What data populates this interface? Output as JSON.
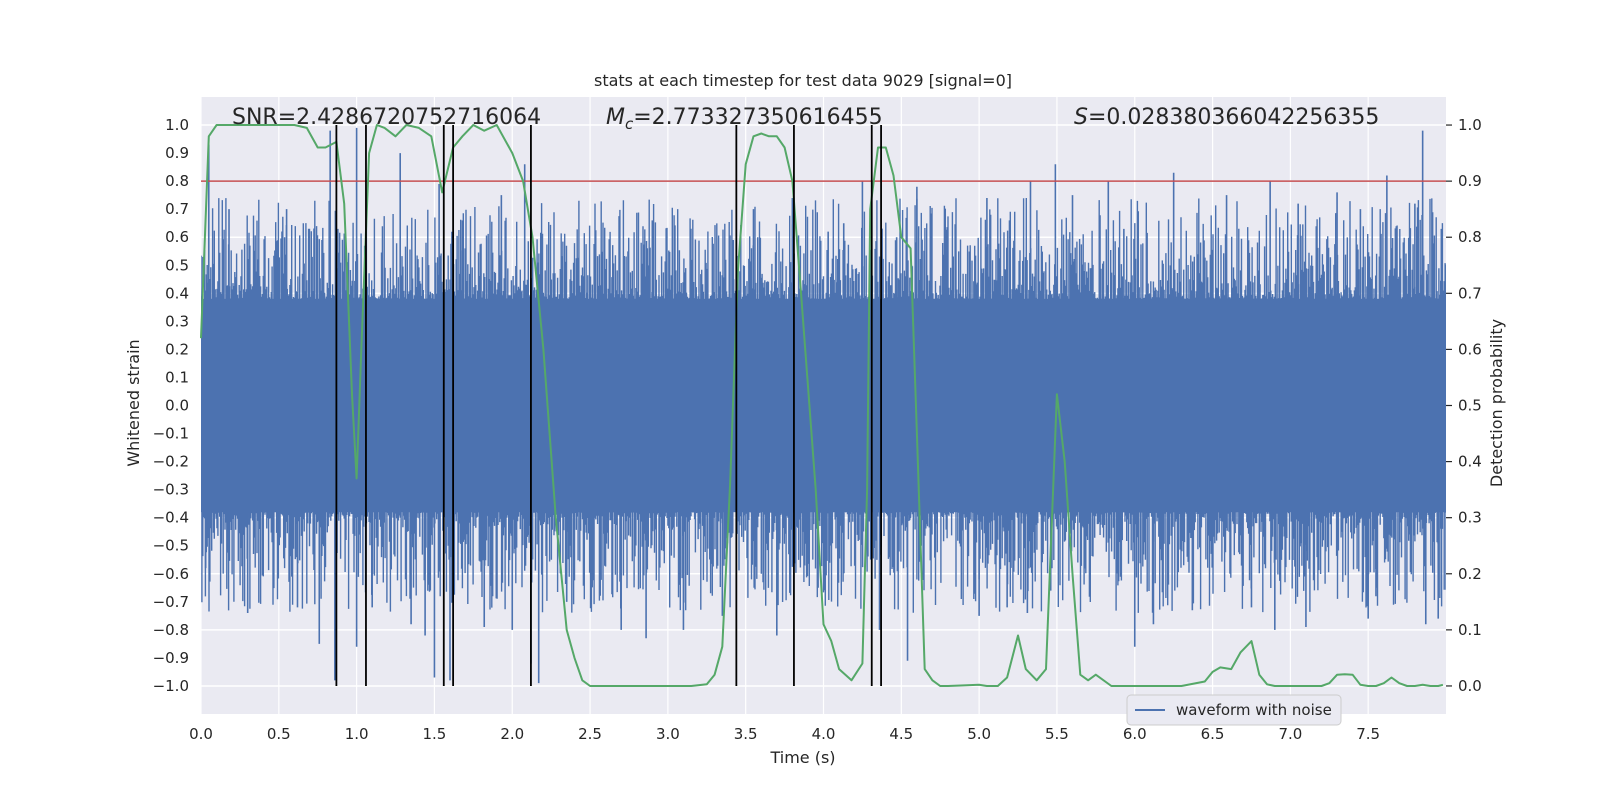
{
  "chart_data": {
    "type": "line",
    "title": "stats at each timestep for test data 9029 [signal=0]",
    "xlabel": "Time (s)",
    "ylabel_left": "Whitened strain",
    "ylabel_right": "Detection probability",
    "xlim": [
      0,
      8
    ],
    "ylim_left": [
      -1.1,
      1.1
    ],
    "ylim_right": [
      -0.05,
      1.05
    ],
    "x_ticks": [
      0.0,
      0.5,
      1.0,
      1.5,
      2.0,
      2.5,
      3.0,
      3.5,
      4.0,
      4.5,
      5.0,
      5.5,
      6.0,
      6.5,
      7.0,
      7.5
    ],
    "x_tick_labels": [
      "0.0",
      "0.5",
      "1.0",
      "1.5",
      "2.0",
      "2.5",
      "3.0",
      "3.5",
      "4.0",
      "4.5",
      "5.0",
      "5.5",
      "6.0",
      "6.5",
      "7.0",
      "7.5"
    ],
    "y_left_ticks": [
      1.0,
      0.9,
      0.8,
      0.7,
      0.6,
      0.5,
      0.4,
      0.3,
      0.2,
      0.1,
      0.0,
      -0.1,
      -0.2,
      -0.3,
      -0.4,
      -0.5,
      -0.6,
      -0.7,
      -0.8,
      -0.9,
      -1.0
    ],
    "y_left_tick_labels": [
      "1.0",
      "0.9",
      "0.8",
      "0.7",
      "0.6",
      "0.5",
      "0.4",
      "0.3",
      "0.2",
      "0.1",
      "0.0",
      "−0.1",
      "−0.2",
      "−0.3",
      "−0.4",
      "−0.5",
      "−0.6",
      "−0.7",
      "−0.8",
      "−0.9",
      "−1.0"
    ],
    "y_right_ticks": [
      1.0,
      0.9,
      0.8,
      0.7,
      0.6,
      0.5,
      0.4,
      0.3,
      0.2,
      0.1,
      0.0
    ],
    "y_right_tick_labels": [
      "1.0",
      "0.9",
      "0.8",
      "0.7",
      "0.6",
      "0.5",
      "0.4",
      "0.3",
      "0.2",
      "0.1",
      "0.0"
    ],
    "annotations": {
      "snr": "SNR=2.4286720752716064",
      "mc_symbol": "M",
      "mc_subscript": "c",
      "mc_value": "=2.773327350616455",
      "s_symbol": "S",
      "s_value": "=0.028380366042256355"
    },
    "threshold": {
      "value": 0.9,
      "axis": "right",
      "color": "#c44e52"
    },
    "vertical_markers": [
      0.87,
      1.06,
      1.56,
      1.62,
      2.12,
      3.44,
      3.81,
      4.31,
      4.37
    ],
    "waveform": {
      "name": "waveform with noise",
      "color": "#4c72b0",
      "core_amplitude": 0.38,
      "peaks": [
        [
          0.03,
          -0.58
        ],
        [
          0.05,
          0.93
        ],
        [
          0.18,
          0.7
        ],
        [
          0.3,
          -0.74
        ],
        [
          0.55,
          0.7
        ],
        [
          0.62,
          -0.72
        ],
        [
          0.76,
          -0.85
        ],
        [
          0.83,
          0.98
        ],
        [
          0.86,
          -0.98
        ],
        [
          1.0,
          0.99
        ],
        [
          1.0,
          -0.86
        ],
        [
          1.1,
          -0.72
        ],
        [
          1.28,
          0.9
        ],
        [
          1.35,
          -0.78
        ],
        [
          1.44,
          -0.82
        ],
        [
          1.5,
          -0.97
        ],
        [
          1.53,
          0.79
        ],
        [
          1.6,
          -0.98
        ],
        [
          1.68,
          0.66
        ],
        [
          1.82,
          -0.79
        ],
        [
          1.93,
          0.75
        ],
        [
          2.0,
          -0.8
        ],
        [
          2.08,
          0.86
        ],
        [
          2.12,
          -0.92
        ],
        [
          2.17,
          -0.99
        ],
        [
          2.35,
          -0.7
        ],
        [
          2.7,
          -0.8
        ],
        [
          2.86,
          -0.83
        ],
        [
          2.9,
          0.66
        ],
        [
          3.1,
          -0.8
        ],
        [
          3.35,
          -0.75
        ],
        [
          3.42,
          0.59
        ],
        [
          3.55,
          0.7
        ],
        [
          3.7,
          -0.82
        ],
        [
          3.8,
          0.74
        ],
        [
          4.03,
          0.62
        ],
        [
          4.13,
          0.65
        ],
        [
          4.25,
          0.8
        ],
        [
          4.36,
          -0.8
        ],
        [
          4.47,
          0.6
        ],
        [
          4.54,
          -0.91
        ],
        [
          4.6,
          0.78
        ],
        [
          5.0,
          -0.75
        ],
        [
          5.05,
          0.74
        ],
        [
          5.18,
          -0.72
        ],
        [
          5.31,
          -0.74
        ],
        [
          5.33,
          0.8
        ],
        [
          5.46,
          -0.66
        ],
        [
          5.49,
          0.86
        ],
        [
          5.6,
          0.75
        ],
        [
          5.83,
          0.8
        ],
        [
          5.93,
          0.63
        ],
        [
          6.0,
          -0.86
        ],
        [
          6.12,
          -0.78
        ],
        [
          6.25,
          0.83
        ],
        [
          6.37,
          -0.73
        ],
        [
          6.59,
          0.75
        ],
        [
          6.75,
          -0.72
        ],
        [
          6.87,
          0.8
        ],
        [
          6.9,
          -0.8
        ],
        [
          7.05,
          0.72
        ],
        [
          7.1,
          -0.79
        ],
        [
          7.3,
          0.76
        ],
        [
          7.45,
          0.7
        ],
        [
          7.5,
          -0.76
        ],
        [
          7.55,
          -0.68
        ],
        [
          7.62,
          0.82
        ],
        [
          7.8,
          0.72
        ],
        [
          7.85,
          0.98
        ],
        [
          7.87,
          -0.78
        ],
        [
          7.95,
          -0.76
        ],
        [
          7.97,
          0.63
        ]
      ]
    },
    "detection_probability": {
      "name": "detection probability",
      "color": "#55a868",
      "x": [
        0.0,
        0.05,
        0.1,
        0.15,
        0.2,
        0.3,
        0.4,
        0.5,
        0.6,
        0.68,
        0.75,
        0.8,
        0.87,
        0.92,
        0.97,
        1.0,
        1.03,
        1.08,
        1.13,
        1.18,
        1.25,
        1.32,
        1.4,
        1.48,
        1.55,
        1.62,
        1.68,
        1.75,
        1.82,
        1.9,
        2.0,
        2.07,
        2.13,
        2.2,
        2.28,
        2.35,
        2.4,
        2.45,
        2.5,
        2.6,
        2.8,
        3.0,
        3.15,
        3.25,
        3.3,
        3.35,
        3.4,
        3.45,
        3.5,
        3.55,
        3.6,
        3.65,
        3.7,
        3.75,
        3.8,
        3.85,
        3.95,
        4.0,
        4.05,
        4.1,
        4.18,
        4.25,
        4.28,
        4.3,
        4.35,
        4.4,
        4.45,
        4.5,
        4.56,
        4.6,
        4.65,
        4.7,
        4.75,
        4.8,
        4.9,
        5.0,
        5.05,
        5.12,
        5.18,
        5.25,
        5.3,
        5.37,
        5.43,
        5.5,
        5.55,
        5.6,
        5.65,
        5.7,
        5.75,
        5.85,
        5.95,
        6.1,
        6.3,
        6.45,
        6.5,
        6.55,
        6.62,
        6.68,
        6.75,
        6.8,
        6.85,
        6.9,
        6.95,
        7.0,
        7.1,
        7.2,
        7.25,
        7.3,
        7.35,
        7.4,
        7.45,
        7.5,
        7.55,
        7.6,
        7.65,
        7.7,
        7.75,
        7.8,
        7.85,
        7.9,
        7.95,
        7.98
      ],
      "y": [
        0.62,
        0.98,
        1.0,
        1.0,
        1.0,
        1.0,
        1.0,
        1.0,
        1.0,
        0.995,
        0.96,
        0.96,
        0.97,
        0.86,
        0.52,
        0.37,
        0.6,
        0.95,
        1.0,
        0.995,
        0.98,
        1.0,
        0.995,
        0.98,
        0.88,
        0.96,
        0.98,
        1.0,
        0.99,
        1.0,
        0.95,
        0.9,
        0.8,
        0.6,
        0.3,
        0.1,
        0.05,
        0.01,
        0.0,
        0.0,
        0.0,
        0.0,
        0.0,
        0.003,
        0.02,
        0.07,
        0.36,
        0.74,
        0.93,
        0.98,
        0.985,
        0.98,
        0.98,
        0.96,
        0.9,
        0.72,
        0.35,
        0.11,
        0.08,
        0.03,
        0.01,
        0.04,
        0.35,
        0.85,
        0.96,
        0.96,
        0.91,
        0.8,
        0.78,
        0.45,
        0.03,
        0.01,
        0.0,
        0.0,
        0.001,
        0.002,
        0.0,
        0.0,
        0.015,
        0.09,
        0.03,
        0.01,
        0.03,
        0.52,
        0.4,
        0.2,
        0.02,
        0.01,
        0.02,
        0.0,
        0.0,
        0.0,
        0.0,
        0.008,
        0.025,
        0.033,
        0.03,
        0.06,
        0.08,
        0.02,
        0.003,
        0.0,
        0.0,
        0.0,
        0.0,
        0.0,
        0.005,
        0.02,
        0.021,
        0.02,
        0.002,
        0.0,
        0.0,
        0.005,
        0.015,
        0.005,
        0.0,
        0.0,
        0.002,
        0.0,
        0.0,
        0.002
      ]
    },
    "legend": {
      "label": "waveform with noise",
      "placement": "lower-center-right"
    }
  }
}
